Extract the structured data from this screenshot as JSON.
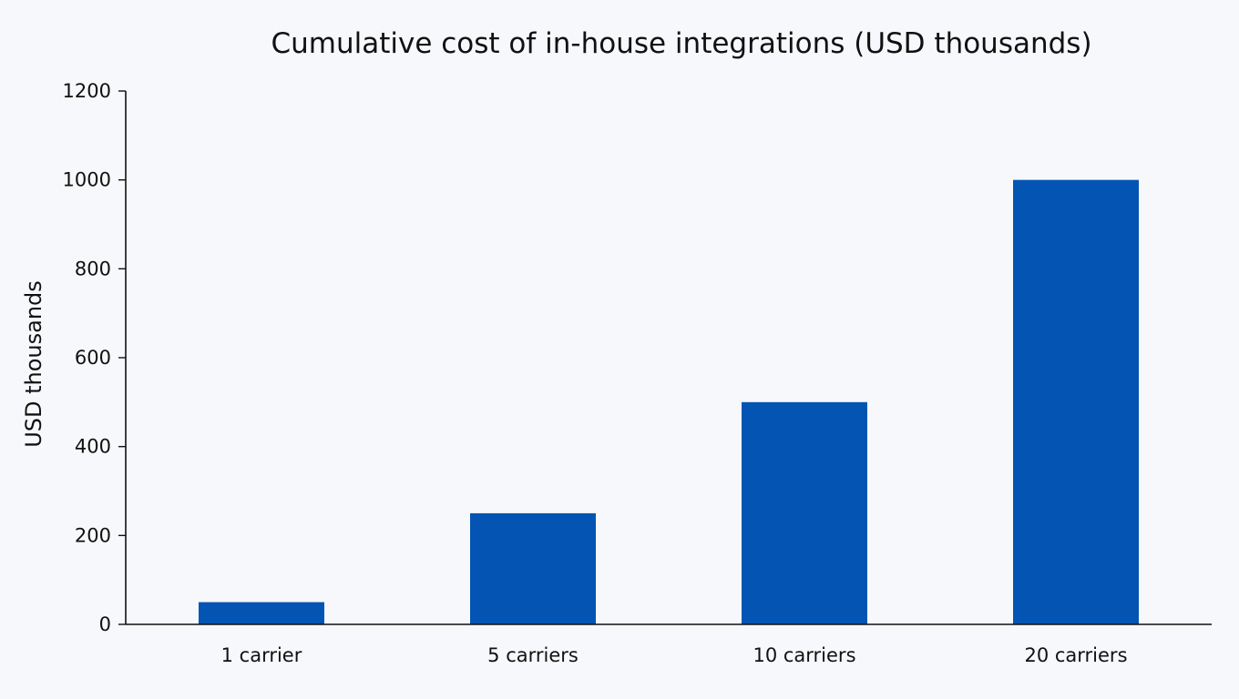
{
  "chart_data": {
    "type": "bar",
    "title": "Cumulative cost of in-house integrations (USD thousands)",
    "xlabel": "",
    "ylabel": "USD thousands",
    "categories": [
      "1 carrier",
      "5 carriers",
      "10 carriers",
      "20 carriers"
    ],
    "values": [
      50,
      250,
      500,
      1000
    ],
    "ylim": [
      0,
      1200
    ],
    "yticks": [
      0,
      200,
      400,
      600,
      800,
      1000,
      1200
    ],
    "grid": false,
    "legend": "none",
    "colors": {
      "bar": "#0455b3",
      "axis": "#111111",
      "background": "#f7f8fb"
    }
  }
}
